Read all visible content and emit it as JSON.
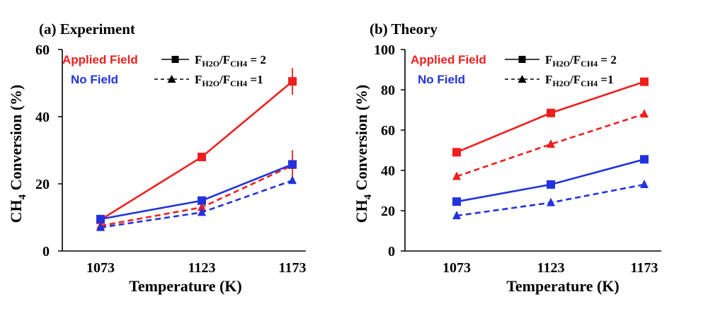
{
  "chart_data": [
    {
      "type": "line",
      "title": "(a) Experiment",
      "xlabel": "Temperature (K)",
      "ylabel": "CH4 Conversion (%)",
      "ylabel_main": "CH",
      "ylabel_sub": "4",
      "ylabel_rest": " Conversion (%)",
      "categories": [
        "1073",
        "1123",
        "1173"
      ],
      "ylim": [
        0,
        60
      ],
      "yticks": [
        "0",
        "20",
        "40",
        "60"
      ],
      "legend": {
        "color_labels": [
          {
            "text": "Applied Field",
            "color": "#f01e1e"
          },
          {
            "text": "No Field",
            "color": "#2233dd"
          }
        ],
        "style_keys": [
          {
            "line": "solid",
            "marker": "square",
            "main": "F",
            "sub1": "H2O",
            "mid": "/F",
            "sub2": "CH4",
            "tail": " = 2"
          },
          {
            "line": "dashed",
            "marker": "triangle",
            "main": "F",
            "sub1": "H2O",
            "mid": "/F",
            "sub2": "CH4",
            "tail": " =1"
          }
        ]
      },
      "series": [
        {
          "name": "Applied Field, FH2O/FCH4 = 2",
          "color": "#f01e1e",
          "dash": false,
          "marker": "square",
          "values": [
            9.3,
            28.0,
            50.5
          ],
          "errors": [
            0,
            0,
            4.0
          ]
        },
        {
          "name": "Applied Field, FH2O/FCH4 = 1",
          "color": "#f01e1e",
          "dash": true,
          "marker": "triangle",
          "values": [
            7.5,
            13.0,
            25.5
          ],
          "errors": [
            0,
            0,
            4.5
          ]
        },
        {
          "name": "No Field, FH2O/FCH4 = 2",
          "color": "#2233dd",
          "dash": false,
          "marker": "square",
          "values": [
            9.5,
            15.0,
            25.8
          ],
          "errors": [
            0,
            0,
            0
          ]
        },
        {
          "name": "No Field, FH2O/FCH4 = 1",
          "color": "#2233dd",
          "dash": true,
          "marker": "triangle",
          "values": [
            7.0,
            11.5,
            21.0
          ],
          "errors": [
            0,
            0,
            0
          ]
        }
      ]
    },
    {
      "type": "line",
      "title": "(b) Theory",
      "xlabel": "Temperature (K)",
      "ylabel": "CH4 Conversion (%)",
      "ylabel_main": "CH",
      "ylabel_sub": "4",
      "ylabel_rest": " Conversion (%)",
      "categories": [
        "1073",
        "1123",
        "1173"
      ],
      "ylim": [
        0,
        100
      ],
      "yticks": [
        "0",
        "20",
        "40",
        "60",
        "80",
        "100"
      ],
      "legend": {
        "color_labels": [
          {
            "text": "Applied Field",
            "color": "#f01e1e"
          },
          {
            "text": "No Field",
            "color": "#2233dd"
          }
        ],
        "style_keys": [
          {
            "line": "solid",
            "marker": "square",
            "main": "F",
            "sub1": "H2O",
            "mid": "/F",
            "sub2": "CH4",
            "tail": " = 2"
          },
          {
            "line": "dashed",
            "marker": "triangle",
            "main": "F",
            "sub1": "H2O",
            "mid": "/F",
            "sub2": "CH4",
            "tail": " =1"
          }
        ]
      },
      "series": [
        {
          "name": "Applied Field, FH2O/FCH4 = 2",
          "color": "#f01e1e",
          "dash": false,
          "marker": "square",
          "values": [
            49.0,
            68.5,
            84.0
          ],
          "errors": [
            0,
            0,
            0
          ]
        },
        {
          "name": "Applied Field, FH2O/FCH4 = 1",
          "color": "#f01e1e",
          "dash": true,
          "marker": "triangle",
          "values": [
            37.0,
            53.0,
            68.0
          ],
          "errors": [
            0,
            0,
            0
          ]
        },
        {
          "name": "No Field, FH2O/FCH4 = 2",
          "color": "#2233dd",
          "dash": false,
          "marker": "square",
          "values": [
            24.5,
            33.0,
            45.5
          ],
          "errors": [
            0,
            0,
            0
          ]
        },
        {
          "name": "No Field, FH2O/FCH4 = 1",
          "color": "#2233dd",
          "dash": true,
          "marker": "triangle",
          "values": [
            17.5,
            24.0,
            33.0
          ],
          "errors": [
            0,
            0,
            0
          ]
        }
      ]
    }
  ]
}
